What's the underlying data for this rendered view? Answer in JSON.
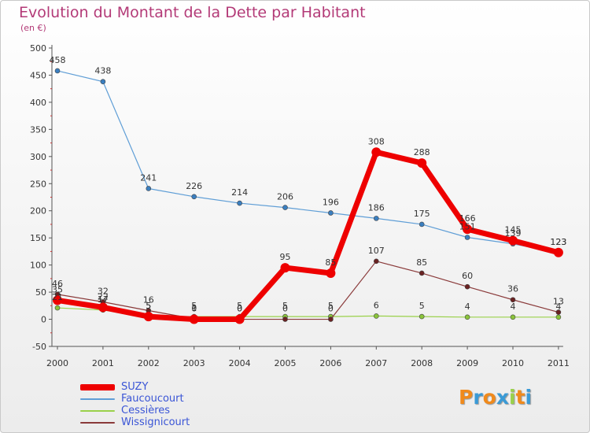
{
  "title": "Evolution du Montant de la Dette par Habitant",
  "subtitle": "(en €)",
  "logo_text": "Proxiti",
  "colors": {
    "title": "#b33a77",
    "legend_text": "#3a55d6"
  },
  "chart_data": {
    "type": "line",
    "title": "Evolution du Montant de la Dette par Habitant",
    "ylabel": "(en €)",
    "xlabel": "",
    "x": [
      "2000",
      "2001",
      "2002",
      "2003",
      "2004",
      "2005",
      "2006",
      "2007",
      "2008",
      "2009",
      "2010",
      "2011"
    ],
    "ylim": [
      -50,
      500
    ],
    "yticks": [
      "-50",
      "0",
      "50",
      "100",
      "150",
      "200",
      "250",
      "300",
      "350",
      "400",
      "450",
      "500"
    ],
    "grid": false,
    "legend": "bottom-left",
    "series": [
      {
        "name": "Faucoucourt",
        "color": "#5f9ed6",
        "point_color": "#3a7fc0",
        "width": 1.2,
        "values": [
          458,
          438,
          241,
          226,
          214,
          206,
          196,
          186,
          175,
          151,
          139,
          123
        ],
        "labels": [
          "458",
          "438",
          "241",
          "226",
          "214",
          "206",
          "196",
          "186",
          "175",
          "151",
          "139",
          "123"
        ]
      },
      {
        "name": "Cessières",
        "color": "#9ad14a",
        "point_color": "#8ac43a",
        "width": 1.2,
        "values": [
          21,
          17,
          5,
          5,
          5,
          5,
          5,
          6,
          5,
          4,
          4,
          4
        ],
        "labels": [
          "21",
          "17",
          "5",
          "5",
          "5",
          "5",
          "5",
          "6",
          "5",
          "4",
          "4",
          "4"
        ]
      },
      {
        "name": "Wissignicourt",
        "color": "#8a3a3a",
        "point_color": "#6a2222",
        "width": 1.2,
        "values": [
          46,
          32,
          16,
          1,
          0,
          0,
          0,
          107,
          85,
          60,
          36,
          13
        ],
        "labels": [
          "46",
          "32",
          "16",
          "1",
          "0",
          "0",
          "0",
          "107",
          "85",
          "60",
          "36",
          "13"
        ]
      },
      {
        "name": "SUZY",
        "color": "#ee0000",
        "point_color": "#ee0000",
        "width": 7,
        "values": [
          35,
          22,
          5,
          0,
          0,
          95,
          85,
          308,
          288,
          166,
          145,
          123
        ],
        "labels": [
          "35",
          "22",
          "5",
          "0",
          "0",
          "95",
          "85",
          "308",
          "288",
          "166",
          "145",
          "123"
        ]
      }
    ]
  },
  "legend_items": [
    {
      "label": "SUZY",
      "color": "#ee0000",
      "thickness": 8
    },
    {
      "label": "Faucoucourt",
      "color": "#5f9ed6",
      "thickness": 2
    },
    {
      "label": "Cessières",
      "color": "#9ad14a",
      "thickness": 2
    },
    {
      "label": "Wissignicourt",
      "color": "#8a3a3a",
      "thickness": 2
    }
  ]
}
